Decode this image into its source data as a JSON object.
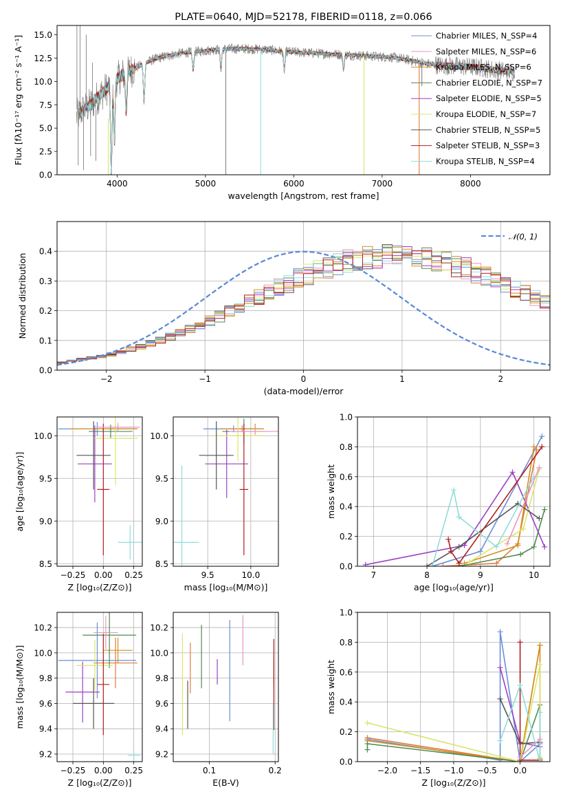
{
  "colors": {
    "grid": "#b0b0b0",
    "spectrum_data": "#808080",
    "gauss": "#5b8bd6",
    "palette": [
      "#6a8ed8",
      "#e07a3a",
      "#d48f1c",
      "#4f8a4f",
      "#9b3fc4",
      "#d9e56a",
      "#555555",
      "#b01e1e",
      "#8fdcdc",
      "#e895c0"
    ]
  },
  "chart_data": [
    {
      "id": "spectrum",
      "type": "line",
      "title": "PLATE=0640, MJD=52178, FIBERID=0118, z=0.066",
      "xlabel": "wavelength [Angstrom, rest frame]",
      "ylabel": "Flux [fλ10⁻¹⁷ erg cm⁻² s⁻¹ A⁻¹]",
      "xlim": [
        3320,
        8900
      ],
      "ylim": [
        0,
        16
      ],
      "xticks": [
        "4000",
        "5000",
        "6000",
        "7000",
        "8000"
      ],
      "yticks": [
        "0.0",
        "2.5",
        "5.0",
        "7.5",
        "10.0",
        "12.5",
        "15.0"
      ],
      "legend_position": "top-right",
      "series": [
        {
          "name": "Chabrier MILES, N_SSP=4"
        },
        {
          "name": "Salpeter MILES, N_SSP=6"
        },
        {
          "name": "Kroupa MILES, N_SSP=6"
        },
        {
          "name": "Chabrier ELODIE, N_SSP=7"
        },
        {
          "name": "Salpeter ELODIE, N_SSP=5"
        },
        {
          "name": "Kroupa ELODIE, N_SSP=7"
        },
        {
          "name": "Chabrier STELIB, N_SSP=5"
        },
        {
          "name": "Salpeter STELIB, N_SSP=3"
        },
        {
          "name": "Kroupa STELIB, N_SSP=4"
        }
      ],
      "continuum": {
        "x": [
          3540,
          3600,
          3700,
          3800,
          3900,
          4000,
          4100,
          4200,
          4300,
          4400,
          4500,
          4700,
          4900,
          5100,
          5300,
          5500,
          5700,
          5900,
          6100,
          6300,
          6500,
          6700,
          6900,
          7100,
          7300,
          7500,
          7700,
          7900,
          8100,
          8300,
          8500
        ],
        "y": [
          6.2,
          6.8,
          7.5,
          8.5,
          9.4,
          10.3,
          10.9,
          11.4,
          11.9,
          12.3,
          12.6,
          13.0,
          13.2,
          13.4,
          13.5,
          13.5,
          13.4,
          13.2,
          13.1,
          13.0,
          12.9,
          12.8,
          12.7,
          12.6,
          12.3,
          11.9,
          11.7,
          11.6,
          11.5,
          11.2,
          11.0
        ]
      },
      "absorption_features": [
        {
          "x": 3934,
          "depth": 9.5
        },
        {
          "x": 3969,
          "depth": 6.5
        },
        {
          "x": 4102,
          "depth": 4.0
        },
        {
          "x": 4305,
          "depth": 4.0
        },
        {
          "x": 4861,
          "depth": 2.0
        },
        {
          "x": 5175,
          "depth": 2.0
        },
        {
          "x": 5892,
          "depth": 2.0
        },
        {
          "x": 6563,
          "depth": 1.5
        }
      ],
      "artifact_lines": [
        {
          "x": 5230,
          "y0": 0,
          "y1": 13.2,
          "color": "#808080"
        },
        {
          "x": 5625,
          "y0": 0,
          "y1": 13.5,
          "color": "#8fdcdc"
        },
        {
          "x": 6795,
          "y0": 0,
          "y1": 12.8,
          "color": "#d9e56a"
        },
        {
          "x": 7420,
          "y0": 0,
          "y1": 12.0,
          "color": "#e07a3a"
        },
        {
          "x": 7450,
          "y0": 9.5,
          "y1": 12.0,
          "color": "#808080"
        },
        {
          "x": 3900,
          "y0": 0,
          "y1": 6.0,
          "color": "#d9e56a"
        }
      ]
    },
    {
      "id": "residuals",
      "type": "area",
      "xlabel": "(data-model)/error",
      "ylabel": "Normed distribution",
      "xlim": [
        -2.5,
        2.5
      ],
      "ylim": [
        0,
        0.5
      ],
      "xticks": [
        "−2",
        "−1",
        "0",
        "1",
        "2"
      ],
      "yticks": [
        "0.0",
        "0.1",
        "0.2",
        "0.3",
        "0.4"
      ],
      "legend_position": "top-right",
      "gauss_label": "𝒩(0, 1)",
      "bin_width": 0.1,
      "x_start": -2.5,
      "base": [
        0.026,
        0.031,
        0.036,
        0.041,
        0.047,
        0.054,
        0.062,
        0.071,
        0.08,
        0.09,
        0.101,
        0.112,
        0.125,
        0.138,
        0.152,
        0.166,
        0.182,
        0.197,
        0.213,
        0.229,
        0.245,
        0.262,
        0.278,
        0.293,
        0.308,
        0.322,
        0.335,
        0.347,
        0.357,
        0.366,
        0.373,
        0.379,
        0.383,
        0.385,
        0.386,
        0.384,
        0.381,
        0.376,
        0.37,
        0.361,
        0.352,
        0.341,
        0.329,
        0.316,
        0.302,
        0.288,
        0.273,
        0.258,
        0.242,
        0.227,
        0.211,
        0.196,
        0.181,
        0.166,
        0.152,
        0.138,
        0.125,
        0.113,
        0.101,
        0.09,
        0.08,
        0.071,
        0.063,
        0.056,
        0.049,
        0.043,
        0.038,
        0.034,
        0.03,
        0.026
      ]
    },
    {
      "id": "age_vs_Z",
      "type": "scatter",
      "xlabel": "Z [log₁₀(Z/Z⊙)]",
      "ylabel": "age  [log₁₀(age/yr)]",
      "xlim": [
        -0.38,
        0.32
      ],
      "ylim": [
        8.47,
        10.22
      ],
      "xticks": [
        "−0.25",
        "0.00",
        "0.25"
      ],
      "yticks": [
        "8.5",
        "9.0",
        "9.5",
        "10.0"
      ],
      "points": [
        {
          "x": -0.05,
          "xerr": 0.32,
          "y": 10.08,
          "yerr": 0.08,
          "c": 0
        },
        {
          "x": 0.1,
          "xerr": 0.18,
          "y": 10.08,
          "yerr": 0.05,
          "c": 1
        },
        {
          "x": 0.0,
          "xerr": 0.28,
          "y": 10.08,
          "yerr": 0.03,
          "c": 2
        },
        {
          "x": 0.06,
          "xerr": 0.18,
          "y": 10.05,
          "yerr": 0.08,
          "c": 3
        },
        {
          "x": -0.07,
          "xerr": 0.14,
          "y": 9.67,
          "yerr": 0.45,
          "c": 4
        },
        {
          "x": 0.1,
          "xerr": 0.18,
          "y": 9.97,
          "yerr": 0.55,
          "c": 5
        },
        {
          "x": -0.08,
          "xerr": 0.14,
          "y": 9.77,
          "yerr": 0.4,
          "c": 6
        },
        {
          "x": 0.0,
          "xerr": 0.05,
          "y": 9.37,
          "yerr": 0.77,
          "c": 7
        },
        {
          "x": 0.22,
          "xerr": 0.1,
          "y": 8.75,
          "yerr": 0.2,
          "c": 8
        },
        {
          "x": 0.12,
          "xerr": 0.18,
          "y": 10.1,
          "yerr": 0.05,
          "c": 9
        }
      ]
    },
    {
      "id": "age_vs_mass",
      "type": "scatter",
      "xlabel": "mass [log₁₀(M/M⊙)]",
      "ylabel": "",
      "xlim": [
        9.1,
        10.32
      ],
      "ylim": [
        8.47,
        10.22
      ],
      "xticks": [
        "9.5",
        "10.0"
      ],
      "yticks": [
        "8.5",
        "9.0",
        "9.5",
        "10.0"
      ],
      "points": [
        {
          "x": 9.8,
          "xerr": 0.35,
          "y": 10.08,
          "yerr": 0.04,
          "c": 0
        },
        {
          "x": 9.9,
          "xerr": 0.25,
          "y": 10.08,
          "yerr": 0.04,
          "c": 1
        },
        {
          "x": 10.05,
          "xerr": 0.1,
          "y": 10.08,
          "yerr": 0.06,
          "c": 2
        },
        {
          "x": 9.92,
          "xerr": 0.25,
          "y": 10.05,
          "yerr": 0.15,
          "c": 3
        },
        {
          "x": 9.72,
          "xerr": 0.25,
          "y": 9.67,
          "yerr": 0.4,
          "c": 4
        },
        {
          "x": 9.85,
          "xerr": 0.3,
          "y": 10.0,
          "yerr": 0.3,
          "c": 5
        },
        {
          "x": 9.6,
          "xerr": 0.2,
          "y": 9.77,
          "yerr": 0.4,
          "c": 6
        },
        {
          "x": 9.92,
          "xerr": 0.05,
          "y": 9.37,
          "yerr": 0.77,
          "c": 7
        },
        {
          "x": 9.2,
          "xerr": 0.2,
          "y": 8.75,
          "yerr": 0.9,
          "c": 8
        },
        {
          "x": 10.05,
          "xerr": 0.3,
          "y": 10.05,
          "yerr": 0.04,
          "c": 9
        }
      ]
    },
    {
      "id": "mass_weight_vs_age",
      "type": "line",
      "xlabel": "age  [log₁₀(age/yr)]",
      "ylabel": "mass weight",
      "xlim": [
        6.7,
        10.3
      ],
      "ylim": [
        0,
        1
      ],
      "xticks": [
        "7",
        "8",
        "9",
        "10"
      ],
      "yticks": [
        "0.0",
        "0.2",
        "0.4",
        "0.6",
        "0.8",
        "1.0"
      ],
      "series": [
        {
          "c": 0,
          "x": [
            8.1,
            9.0,
            10.15
          ],
          "y": [
            0.0,
            0.1,
            0.87
          ]
        },
        {
          "c": 1,
          "x": [
            8.3,
            9.3,
            9.7,
            10.05
          ],
          "y": [
            0.0,
            0.02,
            0.15,
            0.78
          ]
        },
        {
          "c": 2,
          "x": [
            8.7,
            9.7,
            10.0
          ],
          "y": [
            0.02,
            0.14,
            0.8
          ]
        },
        {
          "c": 3,
          "x": [
            8.6,
            9.75,
            10.0,
            10.2
          ],
          "y": [
            0.0,
            0.08,
            0.13,
            0.38
          ]
        },
        {
          "c": 4,
          "x": [
            6.85,
            8.7,
            9.6,
            10.2
          ],
          "y": [
            0.01,
            0.14,
            0.63,
            0.13
          ]
        },
        {
          "c": 5,
          "x": [
            8.8,
            9.8,
            10.1
          ],
          "y": [
            0.03,
            0.25,
            0.65
          ]
        },
        {
          "c": 6,
          "x": [
            8.0,
            8.6,
            9.7,
            10.1
          ],
          "y": [
            0.0,
            0.13,
            0.42,
            0.32
          ]
        },
        {
          "c": 7,
          "x": [
            8.4,
            8.45,
            8.6,
            10.15
          ],
          "y": [
            0.18,
            0.1,
            0.02,
            0.8
          ]
        },
        {
          "c": 8,
          "x": [
            8.1,
            8.5,
            8.6,
            9.3,
            10.0
          ],
          "y": [
            0.0,
            0.51,
            0.33,
            0.13,
            0.6
          ]
        },
        {
          "c": 9,
          "x": [
            9.5,
            10.1
          ],
          "y": [
            0.15,
            0.66
          ]
        }
      ]
    },
    {
      "id": "mass_vs_Z",
      "type": "scatter",
      "xlabel": "Z [log₁₀(Z/Z⊙)]",
      "ylabel": "mass [log₁₀(M/M⊙)]",
      "xlim": [
        -0.38,
        0.32
      ],
      "ylim": [
        9.14,
        10.32
      ],
      "xticks": [
        "−0.25",
        "0.00",
        "0.25"
      ],
      "yticks": [
        "9.2",
        "9.4",
        "9.6",
        "9.8",
        "10.0",
        "10.2"
      ],
      "points": [
        {
          "x": -0.05,
          "xerr": 0.32,
          "y": 9.94,
          "yerr": 0.3,
          "c": 0
        },
        {
          "x": 0.1,
          "xerr": 0.18,
          "y": 9.92,
          "yerr": 0.2,
          "c": 1
        },
        {
          "x": 0.12,
          "xerr": 0.12,
          "y": 10.02,
          "yerr": 0.1,
          "c": 2
        },
        {
          "x": 0.05,
          "xerr": 0.22,
          "y": 10.14,
          "yerr": 0.26,
          "c": 3
        },
        {
          "x": -0.17,
          "xerr": 0.14,
          "y": 9.69,
          "yerr": 0.24,
          "c": 4
        },
        {
          "x": -0.07,
          "xerr": 0.15,
          "y": 9.9,
          "yerr": 0.2,
          "c": 5
        },
        {
          "x": -0.08,
          "xerr": 0.17,
          "y": 9.6,
          "yerr": 0.2,
          "c": 6
        },
        {
          "x": 0.0,
          "xerr": 0.05,
          "y": 9.75,
          "yerr": 0.4,
          "c": 7
        },
        {
          "x": 0.25,
          "xerr": 0.05,
          "y": 9.19,
          "yerr": 0.04,
          "c": 8
        },
        {
          "x": 0.02,
          "xerr": 0.1,
          "y": 10.16,
          "yerr": 0.13,
          "c": 9
        }
      ]
    },
    {
      "id": "mass_vs_EBV",
      "type": "scatter",
      "xlabel": "E(B-V)",
      "ylabel": "",
      "xlim": [
        0.045,
        0.205
      ],
      "ylim": [
        9.14,
        10.32
      ],
      "xticks": [
        "0.1",
        "0.2"
      ],
      "yticks": [
        "9.2",
        "9.4",
        "9.6",
        "9.8",
        "10.0",
        "10.2"
      ],
      "points": [
        {
          "x": 0.131,
          "y": 9.86,
          "yerr": 0.4,
          "c": 0
        },
        {
          "x": 0.071,
          "y": 9.88,
          "yerr": 0.2,
          "c": 1
        },
        {
          "x": 0.198,
          "y": 9.85,
          "yerr": 0.1,
          "c": 2
        },
        {
          "x": 0.088,
          "y": 9.97,
          "yerr": 0.25,
          "c": 3
        },
        {
          "x": 0.112,
          "y": 9.85,
          "yerr": 0.1,
          "c": 4
        },
        {
          "x": 0.059,
          "y": 9.75,
          "yerr": 0.4,
          "c": 5
        },
        {
          "x": 0.067,
          "y": 9.59,
          "yerr": 0.19,
          "c": 6
        },
        {
          "x": 0.198,
          "y": 9.75,
          "yerr": 0.36,
          "c": 7
        },
        {
          "x": 0.197,
          "y": 9.4,
          "yerr": 0.2,
          "c": 8
        },
        {
          "x": 0.151,
          "y": 10.1,
          "yerr": 0.2,
          "c": 9
        }
      ]
    },
    {
      "id": "mass_weight_vs_Z",
      "type": "line",
      "xlabel": "Z [log₁₀(Z/Z⊙)]",
      "ylabel": "mass weight",
      "xlim": [
        -2.45,
        0.45
      ],
      "ylim": [
        0,
        1
      ],
      "xticks": [
        "−2.0",
        "−1.5",
        "−1.0",
        "−0.5",
        "0.0"
      ],
      "yticks": [
        "0.0",
        "0.2",
        "0.4",
        "0.6",
        "0.8",
        "1.0"
      ],
      "series": [
        {
          "c": 0,
          "x": [
            -2.3,
            -0.3,
            -0.3,
            0.0,
            0.3
          ],
          "y": [
            0.15,
            0.01,
            0.87,
            0.0,
            0.12
          ]
        },
        {
          "c": 1,
          "x": [
            -2.3,
            -0.3,
            0.0,
            0.3
          ],
          "y": [
            0.16,
            0.02,
            0.0,
            0.78
          ]
        },
        {
          "c": 2,
          "x": [
            -2.3,
            0.0,
            0.3,
            0.3
          ],
          "y": [
            0.14,
            0.0,
            0.78,
            0.02
          ]
        },
        {
          "c": 3,
          "x": [
            -2.3,
            -2.3,
            0.0,
            0.3,
            0.3
          ],
          "y": [
            0.08,
            0.12,
            0.0,
            0.38,
            0.0
          ]
        },
        {
          "c": 4,
          "x": [
            -0.3,
            0.0,
            0.3
          ],
          "y": [
            0.63,
            0.13,
            0.1
          ]
        },
        {
          "c": 5,
          "x": [
            -2.3,
            0.0,
            0.3,
            0.3
          ],
          "y": [
            0.26,
            0.0,
            0.65,
            0.03
          ]
        },
        {
          "c": 6,
          "x": [
            -0.3,
            0.0,
            0.3
          ],
          "y": [
            0.42,
            0.12,
            0.13
          ]
        },
        {
          "c": 7,
          "x": [
            0.0,
            0.0,
            0.3
          ],
          "y": [
            0.8,
            0.01,
            0.01
          ]
        },
        {
          "c": 8,
          "x": [
            -0.3,
            0.0,
            0.3,
            0.3
          ],
          "y": [
            0.14,
            0.51,
            0.0,
            0.33
          ]
        },
        {
          "c": 9,
          "x": [
            0.0,
            0.3
          ],
          "y": [
            0.03,
            0.15
          ]
        }
      ]
    }
  ]
}
